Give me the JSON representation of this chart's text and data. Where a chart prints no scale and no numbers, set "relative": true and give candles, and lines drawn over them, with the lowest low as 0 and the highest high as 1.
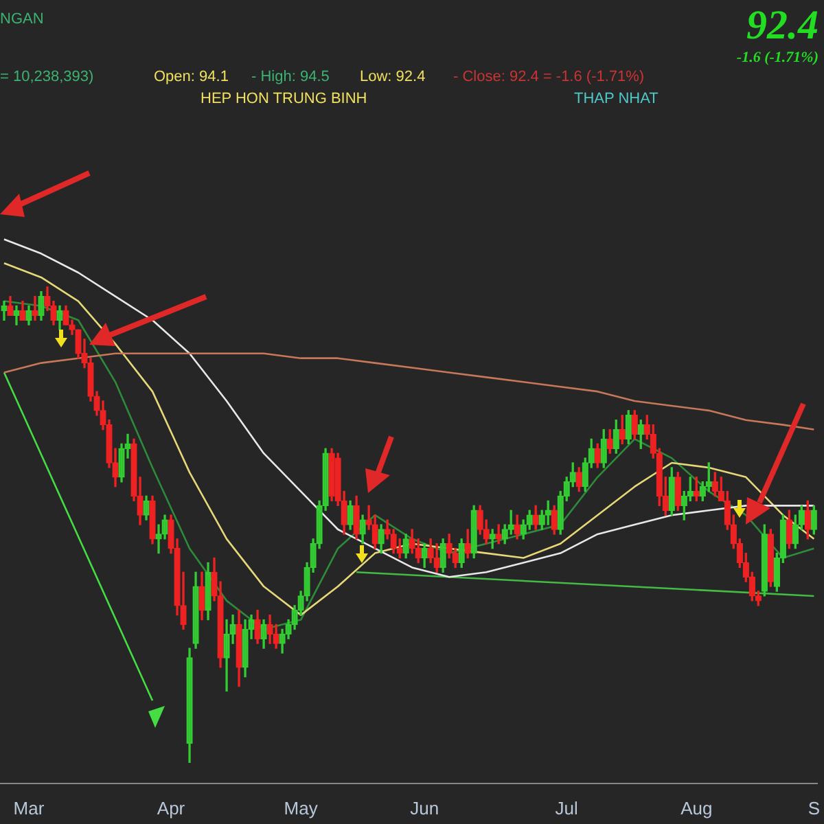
{
  "chart_data": {
    "type": "candlestick",
    "title": "92.4",
    "subtitle": "-1.6 (-1.71%)",
    "annotations": [
      "NGAN",
      "= 10,238,393)",
      "Open: 94.1",
      "- High: 94.5",
      "Low: 92.4",
      "- Close: 92.4 = -1.6 (-1.71%)",
      "HEP HON TRUNG BINH",
      "THAP NHAT"
    ],
    "relative": true,
    "legend": false,
    "tick_labels": "x",
    "grid": false,
    "categories": [
      null,
      null,
      null,
      null,
      "Mar",
      null,
      null,
      null,
      null,
      null,
      null,
      null,
      null,
      null,
      null,
      null,
      null,
      null,
      null,
      null,
      null,
      null,
      null,
      null,
      null,
      null,
      null,
      "Apr",
      null,
      null,
      null,
      null,
      null,
      null,
      null,
      null,
      null,
      null,
      null,
      null,
      null,
      null,
      null,
      null,
      null,
      null,
      null,
      null,
      "May",
      null,
      null,
      null,
      null,
      null,
      null,
      null,
      null,
      null,
      null,
      null,
      null,
      null,
      null,
      null,
      null,
      null,
      null,
      null,
      "Jun",
      null,
      null,
      null,
      null,
      null,
      null,
      null,
      null,
      null,
      null,
      null,
      null,
      null,
      null,
      null,
      null,
      null,
      null,
      null,
      null,
      null,
      null,
      "Jul",
      null,
      null,
      null,
      null,
      null,
      null,
      null,
      null,
      null,
      null,
      null,
      null,
      null,
      null,
      null,
      null,
      null,
      null,
      null,
      null,
      "Aug",
      null,
      null,
      null,
      null,
      null,
      null,
      null,
      null,
      null,
      null,
      null,
      null,
      null,
      null,
      null,
      null,
      null,
      null,
      "S"
    ],
    "ohlc": [
      [
        0.95,
        0.97,
        0.93,
        0.96
      ],
      [
        0.96,
        0.98,
        0.94,
        0.94
      ],
      [
        0.94,
        0.96,
        0.92,
        0.95
      ],
      [
        0.95,
        0.97,
        0.93,
        0.93
      ],
      [
        0.93,
        0.96,
        0.92,
        0.95
      ],
      [
        0.95,
        0.98,
        0.93,
        0.94
      ],
      [
        0.94,
        0.99,
        0.93,
        0.98
      ],
      [
        0.98,
        1.0,
        0.95,
        0.96
      ],
      [
        0.96,
        0.97,
        0.92,
        0.93
      ],
      [
        0.93,
        0.96,
        0.91,
        0.95
      ],
      [
        0.95,
        0.96,
        0.92,
        0.92
      ],
      [
        0.92,
        0.93,
        0.9,
        0.91
      ],
      [
        0.91,
        0.91,
        0.85,
        0.86
      ],
      [
        0.86,
        0.89,
        0.83,
        0.84
      ],
      [
        0.84,
        0.85,
        0.76,
        0.77
      ],
      [
        0.77,
        0.78,
        0.73,
        0.74
      ],
      [
        0.74,
        0.76,
        0.7,
        0.71
      ],
      [
        0.71,
        0.72,
        0.62,
        0.63
      ],
      [
        0.63,
        0.66,
        0.58,
        0.6
      ],
      [
        0.6,
        0.67,
        0.59,
        0.66
      ],
      [
        0.66,
        0.69,
        0.64,
        0.67
      ],
      [
        0.67,
        0.68,
        0.55,
        0.56
      ],
      [
        0.56,
        0.6,
        0.5,
        0.52
      ],
      [
        0.52,
        0.56,
        0.51,
        0.55
      ],
      [
        0.55,
        0.56,
        0.46,
        0.47
      ],
      [
        0.47,
        0.5,
        0.44,
        0.48
      ],
      [
        0.48,
        0.52,
        0.47,
        0.51
      ],
      [
        0.51,
        0.52,
        0.44,
        0.45
      ],
      [
        0.45,
        0.47,
        0.31,
        0.33
      ],
      [
        0.33,
        0.4,
        0.28,
        0.29
      ],
      [
        0.04,
        0.24,
        0.0,
        0.22
      ],
      [
        0.25,
        0.4,
        0.24,
        0.37
      ],
      [
        0.37,
        0.4,
        0.3,
        0.32
      ],
      [
        0.32,
        0.42,
        0.3,
        0.4
      ],
      [
        0.4,
        0.43,
        0.34,
        0.35
      ],
      [
        0.35,
        0.38,
        0.2,
        0.22
      ],
      [
        0.22,
        0.3,
        0.15,
        0.27
      ],
      [
        0.27,
        0.31,
        0.25,
        0.29
      ],
      [
        0.29,
        0.32,
        0.16,
        0.2
      ],
      [
        0.2,
        0.3,
        0.18,
        0.28
      ],
      [
        0.28,
        0.31,
        0.26,
        0.3
      ],
      [
        0.3,
        0.32,
        0.25,
        0.26
      ],
      [
        0.26,
        0.3,
        0.24,
        0.29
      ],
      [
        0.29,
        0.31,
        0.25,
        0.27
      ],
      [
        0.27,
        0.29,
        0.24,
        0.25
      ],
      [
        0.25,
        0.28,
        0.23,
        0.27
      ],
      [
        0.27,
        0.3,
        0.26,
        0.29
      ],
      [
        0.29,
        0.33,
        0.28,
        0.32
      ],
      [
        0.32,
        0.36,
        0.31,
        0.35
      ],
      [
        0.35,
        0.42,
        0.34,
        0.41
      ],
      [
        0.41,
        0.47,
        0.4,
        0.46
      ],
      [
        0.46,
        0.55,
        0.45,
        0.54
      ],
      [
        0.54,
        0.66,
        0.53,
        0.65
      ],
      [
        0.65,
        0.66,
        0.55,
        0.56
      ],
      [
        0.64,
        0.65,
        0.54,
        0.55
      ],
      [
        0.55,
        0.57,
        0.48,
        0.5
      ],
      [
        0.5,
        0.55,
        0.49,
        0.54
      ],
      [
        0.54,
        0.56,
        0.47,
        0.48
      ],
      [
        0.48,
        0.52,
        0.46,
        0.51
      ],
      [
        0.51,
        0.54,
        0.49,
        0.5
      ],
      [
        0.5,
        0.52,
        0.45,
        0.46
      ],
      [
        0.46,
        0.5,
        0.44,
        0.49
      ],
      [
        0.49,
        0.51,
        0.47,
        0.48
      ],
      [
        0.48,
        0.49,
        0.44,
        0.45
      ],
      [
        0.45,
        0.47,
        0.43,
        0.44
      ],
      [
        0.44,
        0.48,
        0.43,
        0.47
      ],
      [
        0.47,
        0.49,
        0.44,
        0.45
      ],
      [
        0.45,
        0.47,
        0.42,
        0.43
      ],
      [
        0.43,
        0.46,
        0.41,
        0.45
      ],
      [
        0.45,
        0.47,
        0.42,
        0.43
      ],
      [
        0.43,
        0.46,
        0.4,
        0.41
      ],
      [
        0.41,
        0.47,
        0.4,
        0.46
      ],
      [
        0.46,
        0.48,
        0.43,
        0.44
      ],
      [
        0.44,
        0.45,
        0.41,
        0.42
      ],
      [
        0.42,
        0.47,
        0.41,
        0.46
      ],
      [
        0.46,
        0.49,
        0.43,
        0.44
      ],
      [
        0.44,
        0.54,
        0.43,
        0.53
      ],
      [
        0.53,
        0.54,
        0.48,
        0.49
      ],
      [
        0.49,
        0.51,
        0.46,
        0.47
      ],
      [
        0.47,
        0.49,
        0.45,
        0.48
      ],
      [
        0.48,
        0.5,
        0.46,
        0.47
      ],
      [
        0.47,
        0.5,
        0.46,
        0.49
      ],
      [
        0.49,
        0.53,
        0.48,
        0.5
      ],
      [
        0.5,
        0.52,
        0.47,
        0.48
      ],
      [
        0.48,
        0.51,
        0.47,
        0.5
      ],
      [
        0.5,
        0.53,
        0.49,
        0.52
      ],
      [
        0.52,
        0.54,
        0.49,
        0.5
      ],
      [
        0.5,
        0.53,
        0.49,
        0.52
      ],
      [
        0.52,
        0.55,
        0.5,
        0.53
      ],
      [
        0.53,
        0.54,
        0.48,
        0.49
      ],
      [
        0.49,
        0.57,
        0.48,
        0.56
      ],
      [
        0.56,
        0.6,
        0.55,
        0.59
      ],
      [
        0.59,
        0.63,
        0.58,
        0.61
      ],
      [
        0.61,
        0.62,
        0.57,
        0.58
      ],
      [
        0.58,
        0.64,
        0.57,
        0.63
      ],
      [
        0.63,
        0.68,
        0.62,
        0.66
      ],
      [
        0.66,
        0.67,
        0.62,
        0.63
      ],
      [
        0.63,
        0.7,
        0.62,
        0.68
      ],
      [
        0.68,
        0.7,
        0.65,
        0.66
      ],
      [
        0.66,
        0.72,
        0.65,
        0.7
      ],
      [
        0.7,
        0.73,
        0.67,
        0.68
      ],
      [
        0.68,
        0.74,
        0.67,
        0.73
      ],
      [
        0.73,
        0.74,
        0.68,
        0.69
      ],
      [
        0.69,
        0.72,
        0.66,
        0.71
      ],
      [
        0.71,
        0.73,
        0.68,
        0.69
      ],
      [
        0.69,
        0.71,
        0.64,
        0.65
      ],
      [
        0.65,
        0.66,
        0.54,
        0.56
      ],
      [
        0.56,
        0.6,
        0.52,
        0.53
      ],
      [
        0.53,
        0.62,
        0.52,
        0.6
      ],
      [
        0.6,
        0.61,
        0.53,
        0.54
      ],
      [
        0.54,
        0.57,
        0.51,
        0.56
      ],
      [
        0.56,
        0.6,
        0.55,
        0.57
      ],
      [
        0.57,
        0.6,
        0.55,
        0.56
      ],
      [
        0.56,
        0.59,
        0.55,
        0.58
      ],
      [
        0.58,
        0.63,
        0.57,
        0.59
      ],
      [
        0.59,
        0.61,
        0.56,
        0.57
      ],
      [
        0.57,
        0.6,
        0.55,
        0.55
      ],
      [
        0.55,
        0.57,
        0.49,
        0.5
      ],
      [
        0.5,
        0.52,
        0.45,
        0.46
      ],
      [
        0.46,
        0.47,
        0.41,
        0.42
      ],
      [
        0.42,
        0.44,
        0.38,
        0.39
      ],
      [
        0.39,
        0.4,
        0.34,
        0.35
      ],
      [
        0.35,
        0.36,
        0.33,
        0.34
      ],
      [
        0.36,
        0.5,
        0.35,
        0.48
      ],
      [
        0.48,
        0.49,
        0.37,
        0.38
      ],
      [
        0.37,
        0.44,
        0.36,
        0.43
      ],
      [
        0.43,
        0.52,
        0.42,
        0.51
      ],
      [
        0.51,
        0.53,
        0.45,
        0.46
      ],
      [
        0.46,
        0.52,
        0.45,
        0.5
      ],
      [
        0.5,
        0.54,
        0.49,
        0.53
      ],
      [
        0.53,
        0.55,
        0.47,
        0.49
      ],
      [
        0.49,
        0.54,
        0.48,
        0.53
      ]
    ],
    "series": [
      {
        "type": "line",
        "color": "#c8785a",
        "values": [
          0.82,
          null,
          null,
          null,
          null,
          null,
          0.84,
          null,
          null,
          null,
          null,
          null,
          0.85,
          null,
          null,
          null,
          null,
          null,
          0.86,
          null,
          null,
          null,
          null,
          null,
          0.86,
          null,
          null,
          null,
          null,
          null,
          0.86,
          null,
          null,
          null,
          null,
          null,
          0.86,
          null,
          null,
          null,
          null,
          null,
          0.86,
          null,
          null,
          null,
          null,
          null,
          0.85,
          null,
          null,
          null,
          null,
          null,
          0.85,
          null,
          null,
          null,
          null,
          null,
          0.84,
          null,
          null,
          null,
          null,
          null,
          0.83,
          null,
          null,
          null,
          null,
          null,
          0.82,
          null,
          null,
          null,
          null,
          null,
          0.81,
          null,
          null,
          null,
          null,
          null,
          0.8,
          null,
          null,
          null,
          null,
          null,
          0.79,
          null,
          null,
          null,
          null,
          null,
          0.78,
          null,
          null,
          null,
          null,
          null,
          0.76,
          null,
          null,
          null,
          null,
          null,
          0.75,
          null,
          null,
          null,
          null,
          null,
          0.74,
          null,
          null,
          null,
          null,
          null,
          0.72,
          null,
          null,
          null,
          null,
          null,
          0.71,
          null,
          null,
          null,
          null,
          0.7
        ]
      },
      {
        "type": "line",
        "color": "#e8e8e8",
        "values": [
          1.1,
          null,
          null,
          null,
          null,
          null,
          1.07,
          null,
          null,
          null,
          null,
          null,
          1.03,
          null,
          null,
          null,
          null,
          null,
          0.98,
          null,
          null,
          null,
          null,
          null,
          0.93,
          null,
          null,
          null,
          null,
          null,
          0.86,
          null,
          null,
          null,
          null,
          null,
          0.76,
          null,
          null,
          null,
          null,
          null,
          0.65,
          null,
          null,
          null,
          null,
          null,
          0.57,
          null,
          null,
          null,
          null,
          null,
          0.49,
          null,
          null,
          null,
          null,
          null,
          0.45,
          null,
          null,
          null,
          null,
          null,
          0.41,
          null,
          null,
          null,
          null,
          null,
          0.39,
          null,
          null,
          null,
          null,
          null,
          0.4,
          null,
          null,
          null,
          null,
          null,
          0.42,
          null,
          null,
          null,
          null,
          null,
          0.44,
          null,
          null,
          null,
          null,
          null,
          0.48,
          null,
          null,
          null,
          null,
          null,
          0.5,
          null,
          null,
          null,
          null,
          null,
          0.52,
          null,
          null,
          null,
          null,
          null,
          0.53,
          null,
          null,
          null,
          null,
          null,
          0.54,
          null,
          null,
          null,
          null,
          null,
          0.54,
          null,
          null,
          null,
          null,
          0.54
        ]
      },
      {
        "type": "line",
        "color": "#e6d878",
        "values": [
          1.05,
          null,
          null,
          null,
          null,
          null,
          1.02,
          null,
          null,
          null,
          null,
          null,
          0.97,
          null,
          null,
          null,
          null,
          null,
          0.88,
          null,
          null,
          null,
          null,
          null,
          0.78,
          null,
          null,
          null,
          null,
          null,
          0.61,
          null,
          null,
          null,
          null,
          null,
          0.47,
          null,
          null,
          null,
          null,
          null,
          0.37,
          null,
          null,
          null,
          null,
          null,
          0.31,
          null,
          null,
          null,
          null,
          null,
          0.37,
          null,
          null,
          null,
          null,
          null,
          0.44,
          null,
          null,
          null,
          null,
          null,
          0.46,
          null,
          null,
          null,
          null,
          null,
          0.45,
          null,
          null,
          null,
          null,
          null,
          0.44,
          null,
          null,
          null,
          null,
          null,
          0.43,
          null,
          null,
          null,
          null,
          null,
          0.46,
          null,
          null,
          null,
          null,
          null,
          0.52,
          null,
          null,
          null,
          null,
          null,
          0.58,
          null,
          null,
          null,
          null,
          null,
          0.63,
          null,
          null,
          null,
          null,
          null,
          0.62,
          null,
          null,
          null,
          null,
          null,
          0.6,
          null,
          null,
          null,
          null,
          null,
          0.52,
          null,
          null,
          null,
          null,
          0.47
        ]
      },
      {
        "type": "line",
        "color": "#2e8b3a",
        "values": [
          0.97,
          null,
          null,
          null,
          null,
          null,
          0.96,
          null,
          null,
          null,
          null,
          null,
          0.93,
          null,
          null,
          null,
          null,
          null,
          0.8,
          null,
          null,
          null,
          null,
          null,
          0.62,
          null,
          null,
          null,
          null,
          null,
          0.45,
          null,
          null,
          null,
          null,
          null,
          0.34,
          null,
          null,
          null,
          null,
          null,
          0.28,
          null,
          null,
          null,
          null,
          null,
          0.3,
          null,
          null,
          null,
          null,
          null,
          0.45,
          null,
          null,
          null,
          null,
          null,
          0.52,
          null,
          null,
          null,
          null,
          null,
          0.47,
          null,
          null,
          null,
          null,
          null,
          0.44,
          null,
          null,
          null,
          null,
          null,
          0.46,
          null,
          null,
          null,
          null,
          null,
          0.48,
          null,
          null,
          null,
          null,
          null,
          0.5,
          null,
          null,
          null,
          null,
          null,
          0.6,
          null,
          null,
          null,
          null,
          null,
          0.68,
          null,
          null,
          null,
          null,
          null,
          0.64,
          null,
          null,
          null,
          null,
          null,
          0.57,
          null,
          null,
          null,
          null,
          null,
          0.52,
          null,
          null,
          null,
          null,
          null,
          0.43,
          null,
          null,
          null,
          null,
          0.45
        ]
      },
      {
        "type": "line",
        "color": "#44dd44",
        "values": [
          0.82,
          null,
          null,
          null,
          null,
          null,
          null,
          null,
          null,
          null,
          null,
          null,
          null,
          null,
          null,
          null,
          null,
          null,
          null,
          null,
          null,
          null,
          null,
          null,
          0.13,
          null,
          null,
          null,
          null,
          null,
          null,
          null,
          null,
          null,
          null,
          null,
          null,
          null,
          null,
          null,
          null,
          null,
          null,
          null,
          null,
          null,
          null,
          null,
          null,
          null,
          null,
          null,
          null,
          null,
          null,
          null,
          null,
          null,
          null,
          null,
          null,
          null,
          null,
          null,
          null,
          null,
          null,
          null,
          null,
          null,
          null,
          null,
          null,
          null,
          null,
          null,
          null,
          null,
          null,
          null,
          null,
          null,
          null,
          null,
          null,
          null,
          null,
          null,
          null,
          null,
          null,
          null,
          null,
          null,
          null,
          null,
          null,
          null,
          null,
          null,
          null,
          null,
          null,
          null,
          null,
          null,
          null,
          null,
          null,
          null,
          null,
          null,
          null,
          null,
          null,
          null,
          null,
          null,
          null,
          null,
          null,
          null,
          null,
          null,
          null,
          null,
          null,
          null,
          null,
          null,
          null,
          null
        ]
      },
      {
        "type": "line",
        "color": "#44bb44",
        "values": [
          null,
          null,
          null,
          null,
          null,
          null,
          null,
          null,
          null,
          null,
          null,
          null,
          null,
          null,
          null,
          null,
          null,
          null,
          null,
          null,
          null,
          null,
          null,
          null,
          null,
          null,
          null,
          null,
          null,
          null,
          null,
          null,
          null,
          null,
          null,
          null,
          null,
          null,
          null,
          null,
          null,
          null,
          null,
          null,
          null,
          null,
          null,
          null,
          null,
          null,
          null,
          null,
          null,
          null,
          null,
          null,
          null,
          0.4,
          null,
          null,
          null,
          null,
          null,
          null,
          null,
          null,
          null,
          null,
          null,
          null,
          null,
          null,
          null,
          null,
          null,
          null,
          null,
          null,
          null,
          null,
          null,
          null,
          null,
          null,
          null,
          null,
          null,
          null,
          null,
          null,
          null,
          null,
          null,
          null,
          null,
          null,
          null,
          null,
          null,
          null,
          null,
          null,
          null,
          null,
          null,
          null,
          null,
          null,
          null,
          null,
          null,
          null,
          null,
          null,
          null,
          null,
          null,
          null,
          null,
          null,
          null,
          null,
          null,
          null,
          null,
          null,
          null,
          null,
          null,
          null,
          null,
          0.35
        ]
      }
    ]
  }
}
